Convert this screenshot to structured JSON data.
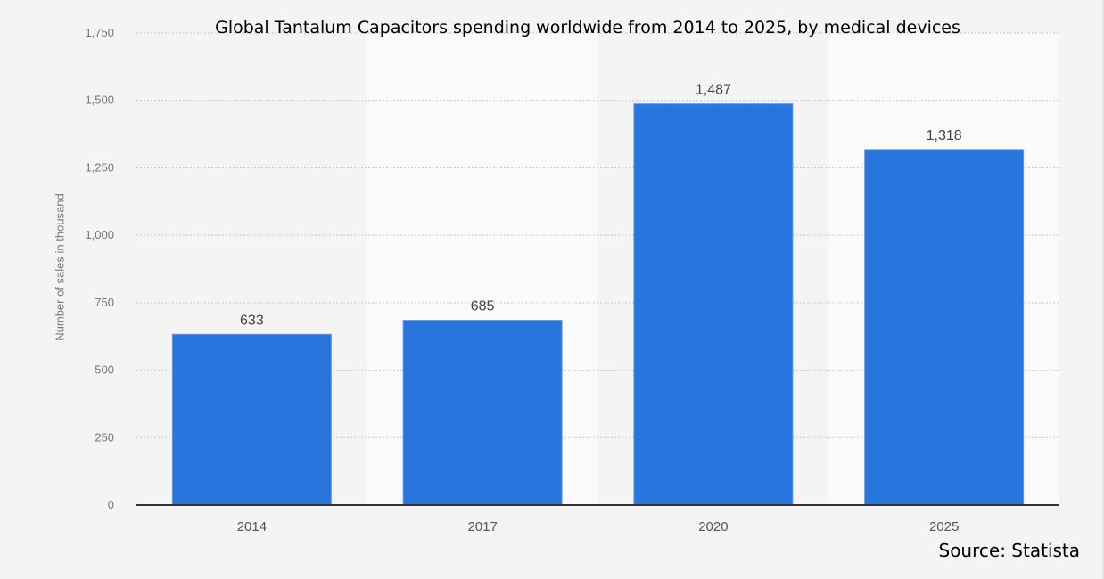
{
  "chart_data": {
    "type": "bar",
    "title": "Global Tantalum Capacitors spending worldwide from 2014 to 2025, by medical devices",
    "xlabel": "",
    "ylabel": "Number of sales in thousand",
    "categories": [
      "2014",
      "2017",
      "2020",
      "2025"
    ],
    "values": [
      633,
      685,
      1487,
      1318
    ],
    "data_labels": [
      "633",
      "685",
      "1,487",
      "1,318"
    ],
    "ylim": [
      0,
      1750
    ],
    "yticks": [
      0,
      250,
      500,
      750,
      1000,
      1250,
      1500,
      1750
    ],
    "ytick_labels": [
      "0",
      "250",
      "500",
      "750",
      "1,000",
      "1,250",
      "1,500",
      "1,750"
    ],
    "grid": true,
    "legend": "none",
    "bar_color": "#2876dd",
    "source": "Source: Statista"
  }
}
